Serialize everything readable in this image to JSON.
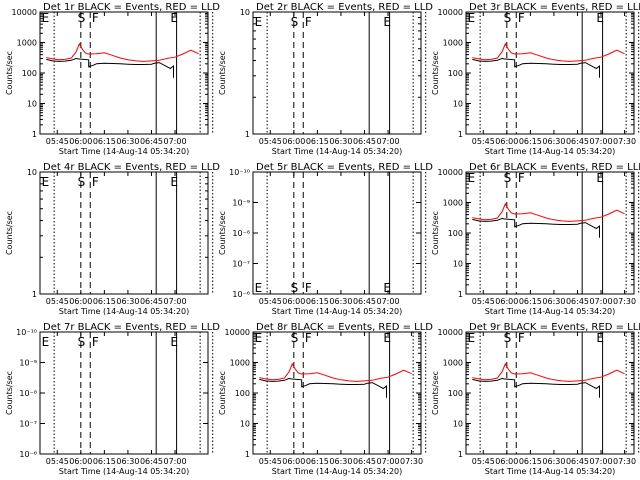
{
  "chart_data": [
    {
      "type": "line",
      "title": "Det 1r BLACK = Events, RED = LLD",
      "ylabel": "Counts/sec",
      "xlabel": "Start Time (14-Aug-14 05:34:20)",
      "yscale": "log",
      "ylim": [
        1,
        10000
      ],
      "ytick_labels": [
        "1",
        "10",
        "100",
        "1000",
        "10000"
      ],
      "xtick_labels": [
        "05:45",
        "06:00",
        "06:15",
        "06:30",
        "06:45",
        "07:00"
      ],
      "region_labels": [
        "E",
        "S",
        "F",
        "E"
      ],
      "has_data": true
    },
    {
      "type": "line",
      "title": "Det 2r BLACK = Events, RED = LLD",
      "ylabel": "Counts/sec",
      "xlabel": "Start Time (14-Aug-14 05:34:20)",
      "yscale": "log",
      "ylim": [
        1,
        10
      ],
      "ytick_labels": [
        "1",
        "10"
      ],
      "xtick_labels": [
        "05:45",
        "06:00",
        "06:15",
        "06:30",
        "06:45",
        "07:00"
      ],
      "region_labels": [
        "E",
        "S",
        "F",
        "E"
      ],
      "has_data": false
    },
    {
      "type": "line",
      "title": "Det 3r BLACK = Events, RED = LLD",
      "ylabel": "Counts/sec",
      "xlabel": "Start Time (14-Aug-14 05:34:20)",
      "yscale": "log",
      "ylim": [
        1,
        10000
      ],
      "ytick_labels": [
        "1",
        "10",
        "100",
        "1000",
        "10000"
      ],
      "xtick_labels": [
        "05:45",
        "06:00",
        "06:15",
        "06:30",
        "06:45",
        "07:00",
        "07:30"
      ],
      "region_labels": [
        "E",
        "S",
        "F",
        "E"
      ],
      "has_data": true
    },
    {
      "type": "line",
      "title": "Det 4r BLACK = Events, RED = LLD",
      "ylabel": "Counts/sec",
      "xlabel": "Start Time (14-Aug-14 05:34:20)",
      "yscale": "log",
      "ylim": [
        1,
        10
      ],
      "ytick_labels": [
        "1",
        "10"
      ],
      "xtick_labels": [
        "05:45",
        "06:00",
        "06:15",
        "06:30",
        "06:45",
        "07:00"
      ],
      "region_labels": [
        "E",
        "S",
        "F",
        "E"
      ],
      "has_data": false
    },
    {
      "type": "line",
      "title": "Det 5r BLACK = Events, RED = LLD",
      "ylabel": "Counts/sec",
      "xlabel": "Start Time (14-Aug-14 05:34:20)",
      "yscale": "log",
      "ylim": [
        1e-06,
        1e-10
      ],
      "ytick_labels": [
        "10⁻⁶",
        "10⁻⁷",
        "10⁻⁸",
        "10⁻⁹",
        "10⁻¹⁰"
      ],
      "xtick_labels": [
        "05:45",
        "06:00",
        "06:15",
        "06:30",
        "06:45",
        "07:00"
      ],
      "region_labels": [
        "E",
        "S",
        "F",
        "E"
      ],
      "has_data": false
    },
    {
      "type": "line",
      "title": "Det 6r BLACK = Events, RED = LLD",
      "ylabel": "Counts/sec",
      "xlabel": "Start Time (14-Aug-14 05:34:20)",
      "yscale": "log",
      "ylim": [
        1,
        10000
      ],
      "ytick_labels": [
        "1",
        "10",
        "100",
        "1000",
        "10000"
      ],
      "xtick_labels": [
        "05:45",
        "06:00",
        "06:15",
        "06:30",
        "06:45",
        "07:00",
        "07:30"
      ],
      "region_labels": [
        "E",
        "S",
        "F",
        "E"
      ],
      "has_data": true
    },
    {
      "type": "line",
      "title": "Det 7r BLACK = Events, RED = LLD",
      "ylabel": "Counts/sec",
      "xlabel": "Start Time (14-Aug-14 05:34:20)",
      "yscale": "log",
      "ylim": [
        1e-06,
        1e-10
      ],
      "ytick_labels": [
        "10⁻⁶",
        "10⁻⁷",
        "10⁻⁸",
        "10⁻⁹",
        "10⁻¹⁰"
      ],
      "xtick_labels": [
        "05:45",
        "06:00",
        "06:15",
        "06:30",
        "06:45",
        "07:00"
      ],
      "region_labels": [
        "E",
        "S",
        "F",
        "E"
      ],
      "has_data": false
    },
    {
      "type": "line",
      "title": "Det 8r BLACK = Events, RED = LLD",
      "ylabel": "Counts/sec",
      "xlabel": "Start Time (14-Aug-14 05:34:20)",
      "yscale": "log",
      "ylim": [
        1,
        10000
      ],
      "ytick_labels": [
        "1",
        "10",
        "100",
        "1000",
        "10000"
      ],
      "xtick_labels": [
        "05:45",
        "06:00",
        "06:15",
        "06:30",
        "06:45",
        "07:00",
        "07:30"
      ],
      "region_labels": [
        "E",
        "S",
        "F",
        "E"
      ],
      "has_data": true
    },
    {
      "type": "line",
      "title": "Det 9r BLACK = Events, RED = LLD",
      "ylabel": "Counts/sec",
      "xlabel": "Start Time (14-Aug-14 05:34:20)",
      "yscale": "log",
      "ylim": [
        1,
        10000
      ],
      "ytick_labels": [
        "1",
        "10",
        "100",
        "1000",
        "10000"
      ],
      "xtick_labels": [
        "05:45",
        "06:00",
        "06:15",
        "06:30",
        "06:45",
        "07:00",
        "07:30"
      ],
      "region_labels": [
        "E",
        "S",
        "F",
        "E"
      ],
      "has_data": true
    }
  ],
  "series_colors": {
    "events": "#000000",
    "lld": "#ff0000"
  },
  "series": {
    "lld": {
      "x": [
        "05:38",
        "05:42",
        "05:46",
        "05:50",
        "05:54",
        "05:57",
        "05:59",
        "06:01",
        "06:03",
        "06:05",
        "06:10",
        "06:15",
        "06:20",
        "06:25",
        "06:30",
        "06:35",
        "06:40",
        "06:45",
        "06:50",
        "06:55",
        "07:00",
        "07:05",
        "07:10",
        "07:15"
      ],
      "y": [
        320,
        290,
        270,
        280,
        310,
        500,
        900,
        600,
        450,
        420,
        430,
        460,
        380,
        310,
        270,
        250,
        240,
        250,
        260,
        300,
        330,
        420,
        560,
        430
      ]
    },
    "events": {
      "x": [
        "05:38",
        "05:42",
        "05:46",
        "05:50",
        "05:54",
        "05:57",
        "05:58",
        "06:05",
        "06:05",
        "06:08",
        "06:10",
        "06:15",
        "06:20",
        "06:25",
        "06:30",
        "06:35",
        "06:40",
        "06:45",
        "06:47",
        "06:50",
        "06:55",
        "06:57",
        "06:59",
        "06:59"
      ],
      "y": [
        280,
        250,
        240,
        245,
        260,
        300,
        290,
        270,
        160,
        180,
        200,
        210,
        205,
        200,
        195,
        190,
        190,
        195,
        210,
        220,
        160,
        140,
        170,
        70
      ]
    }
  },
  "event_lines": {
    "x": [
      "05:43",
      "06:00",
      "06:06",
      "06:48",
      "07:01",
      "07:16",
      "07:24"
    ],
    "styles": [
      "dotted",
      "dashed",
      "dashed",
      "solid",
      "solid",
      "dotted",
      "dotted"
    ]
  }
}
